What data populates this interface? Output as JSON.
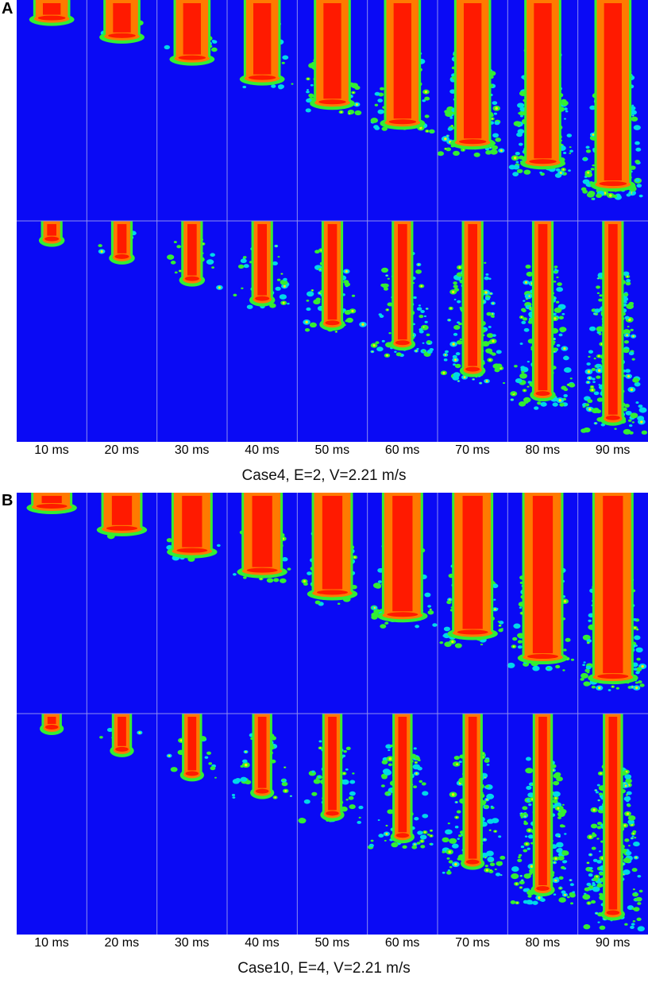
{
  "colors": {
    "background_field": "#0a0af5",
    "core_outer": "#ff7a00",
    "core_inner": "#ff1a00",
    "interface_green": "#33ee33",
    "interface_cyan": "#00d8e8",
    "interface_yellow": "#ffee00",
    "separator": "#8f8ff0"
  },
  "panels": [
    {
      "letter": "A",
      "caption": "Case4, E=2, V=2.21 m/s",
      "time_labels": [
        "10 ms",
        "20 ms",
        "30 ms",
        "40 ms",
        "50 ms",
        "60 ms",
        "70 ms",
        "80 ms",
        "90 ms"
      ],
      "rows": [
        {
          "tip_depth_fraction": [
            0.11,
            0.19,
            0.29,
            0.38,
            0.49,
            0.58,
            0.67,
            0.76,
            0.86
          ],
          "core_halfwidth_fraction": 0.23
        },
        {
          "tip_depth_fraction": [
            0.11,
            0.19,
            0.29,
            0.38,
            0.49,
            0.58,
            0.7,
            0.81,
            0.92
          ],
          "core_halfwidth_fraction": 0.12
        }
      ]
    },
    {
      "letter": "B",
      "caption": "Case10, E=4, V=2.21 m/s",
      "time_labels": [
        "10 ms",
        "20 ms",
        "30 ms",
        "40 ms",
        "50 ms",
        "60 ms",
        "70 ms",
        "80 ms",
        "90 ms"
      ],
      "rows": [
        {
          "tip_depth_fraction": [
            0.09,
            0.19,
            0.29,
            0.38,
            0.48,
            0.58,
            0.66,
            0.77,
            0.86
          ],
          "core_halfwidth_fraction": 0.26
        },
        {
          "tip_depth_fraction": [
            0.09,
            0.19,
            0.3,
            0.38,
            0.48,
            0.58,
            0.7,
            0.82,
            0.93
          ],
          "core_halfwidth_fraction": 0.11
        }
      ]
    }
  ]
}
